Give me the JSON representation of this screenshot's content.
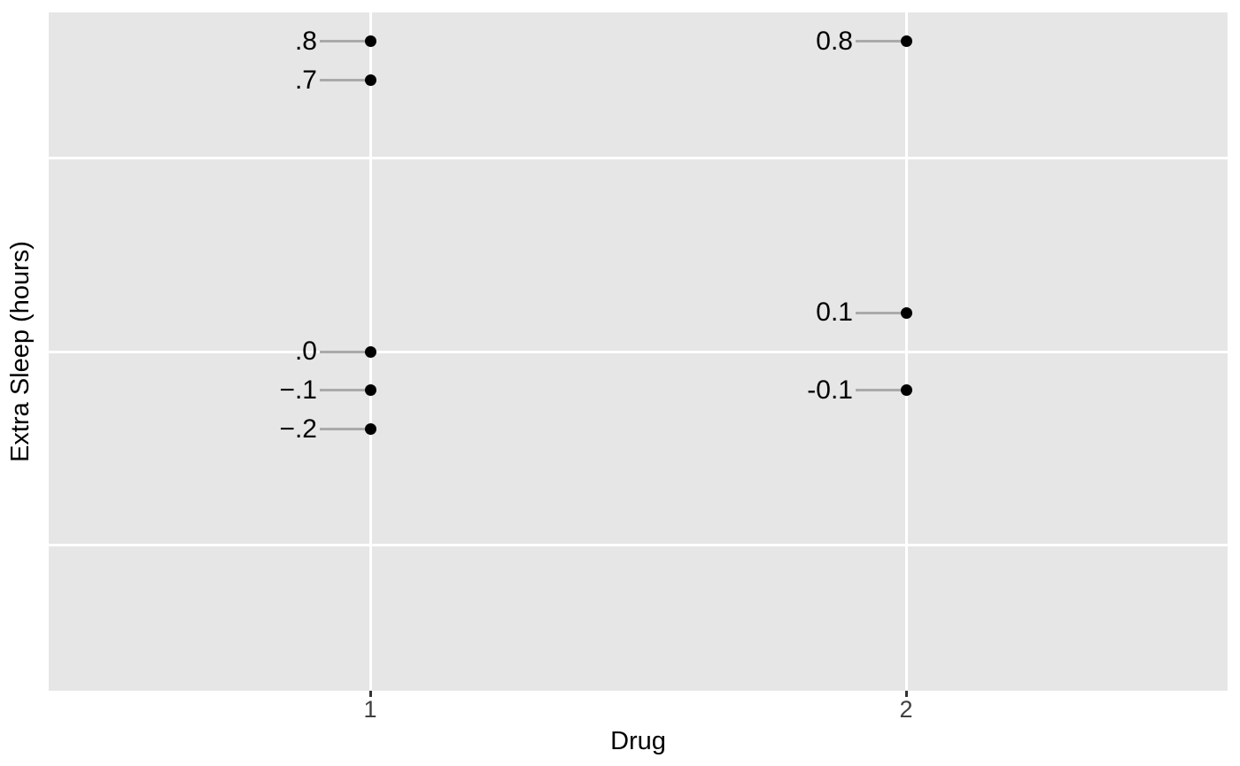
{
  "figure": {
    "colors": {
      "page_bg": "#ffffff",
      "panel_bg": "#e6e6e6",
      "gridline": "#ffffff",
      "point": "#000000",
      "leader_line": "#aaaaaa",
      "label_text": "#000000",
      "axis_title": "#000000",
      "tick_label": "#404040",
      "tick_mark": "#333333"
    }
  },
  "chart_data": {
    "type": "scatter",
    "title": "",
    "xlabel": "Drug",
    "ylabel": "Extra Sleep (hours)",
    "xlim": [
      0.4,
      2.6
    ],
    "ylim": [
      -0.875,
      0.875
    ],
    "x_ticks": [
      1,
      2
    ],
    "x_tick_labels": [
      "1",
      "2"
    ],
    "y_ticks": [],
    "x_gridlines": [
      1,
      2
    ],
    "y_gridlines": [
      -0.5,
      0,
      0.5
    ],
    "grid": "major gridlines only, white on gray panel",
    "legend": "none",
    "points": [
      {
        "x": 1,
        "y": 0.8,
        "label": ".8"
      },
      {
        "x": 1,
        "y": 0.7,
        "label": ".7"
      },
      {
        "x": 1,
        "y": 0.0,
        "label": ".0"
      },
      {
        "x": 1,
        "y": -0.1,
        "label": "−.1"
      },
      {
        "x": 1,
        "y": -0.2,
        "label": "−.2"
      },
      {
        "x": 2,
        "y": 0.8,
        "label": "0.8"
      },
      {
        "x": 2,
        "y": 0.1,
        "label": "0.1"
      },
      {
        "x": 2,
        "y": -0.1,
        "label": "-0.1"
      }
    ]
  }
}
